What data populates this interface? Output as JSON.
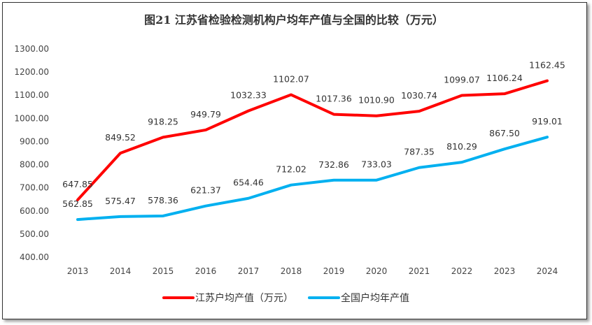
{
  "chart_data": {
    "type": "line",
    "title": "图21  江苏省检验检测机构户均年产值与全国的比较（万元）",
    "x": [
      "2013",
      "2014",
      "2015",
      "2016",
      "2017",
      "2018",
      "2019",
      "2020",
      "2021",
      "2022",
      "2023",
      "2024"
    ],
    "series": [
      {
        "name": "江苏户均产值（万元）",
        "color": "#ff0000",
        "values": [
          647.85,
          849.52,
          918.25,
          949.79,
          1032.33,
          1102.07,
          1017.36,
          1010.9,
          1030.74,
          1099.07,
          1106.24,
          1162.45
        ]
      },
      {
        "name": "全国户均年产值",
        "color": "#00b0f0",
        "values": [
          562.85,
          575.47,
          578.36,
          621.37,
          654.46,
          712.02,
          732.86,
          733.03,
          787.35,
          810.29,
          867.5,
          919.01
        ]
      }
    ],
    "ylim": [
      400,
      1300
    ],
    "yticks": [
      "400.00",
      "500.00",
      "600.00",
      "700.00",
      "800.00",
      "900.00",
      "1000.00",
      "1100.00",
      "1200.00",
      "1300.00"
    ],
    "grid": false,
    "legend": "bottom"
  }
}
